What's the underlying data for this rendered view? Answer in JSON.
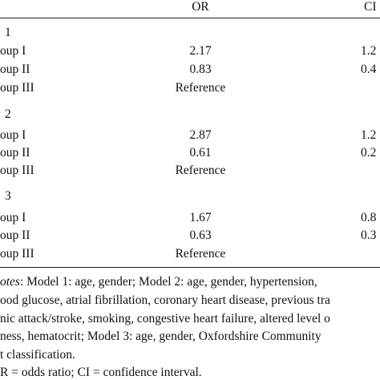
{
  "header": {
    "or": "OR",
    "ci": "CI"
  },
  "models": [
    {
      "label": "1",
      "rows": [
        {
          "group": "oup I",
          "or": "2.17",
          "ci": "1.2"
        },
        {
          "group": "oup II",
          "or": "0.83",
          "ci": "0.4"
        },
        {
          "group": "oup III",
          "or": "Reference"
        }
      ]
    },
    {
      "label": "2",
      "rows": [
        {
          "group": "oup I",
          "or": "2.87",
          "ci": "1.2"
        },
        {
          "group": "oup II",
          "or": "0.61",
          "ci": "0.2"
        },
        {
          "group": "oup III",
          "or": "Reference"
        }
      ]
    },
    {
      "label": "3",
      "rows": [
        {
          "group": "oup I",
          "or": "1.67",
          "ci": "0.8"
        },
        {
          "group": "oup II",
          "or": "0.63",
          "ci": "0.3"
        },
        {
          "group": "oup III",
          "or": "Reference"
        }
      ]
    }
  ],
  "notes": {
    "lead": "otes",
    "first": ": Model 1: age, gender; Model 2: age, gender, hypertension,",
    "lines": [
      "ood glucose, atrial fibrillation, coronary heart disease, previous tra",
      "nic attack/stroke, smoking, congestive heart failure, altered level o",
      "ness, hematocrit; Model 3: age, gender, Oxfordshire Community",
      "t classification.",
      "R = odds ratio; CI = confidence interval."
    ]
  }
}
